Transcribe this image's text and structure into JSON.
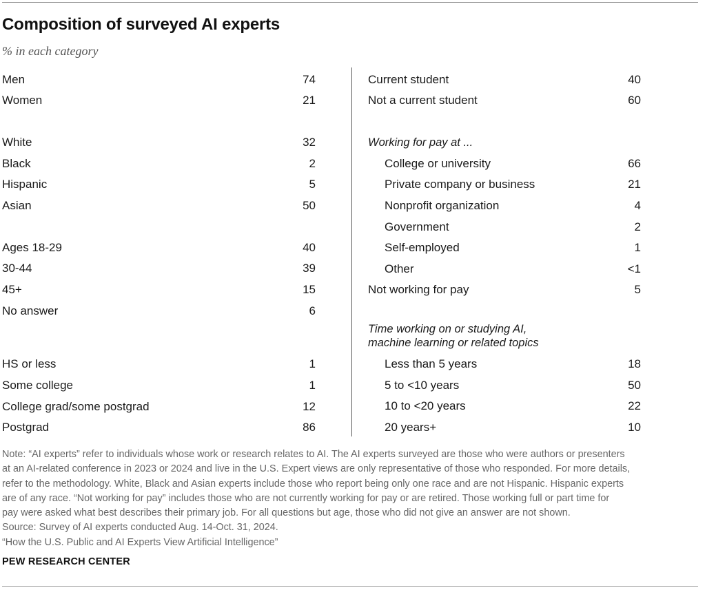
{
  "title": "Composition of surveyed AI experts",
  "subtitle": "% in each category",
  "chart_data": {
    "type": "table",
    "title": "Composition of surveyed AI experts",
    "subtitle": "% in each category",
    "left_column": [
      {
        "label": "Men",
        "value": "74"
      },
      {
        "label": "Women",
        "value": "21"
      },
      {
        "label": "White",
        "value": "32"
      },
      {
        "label": "Black",
        "value": "2"
      },
      {
        "label": "Hispanic",
        "value": "5"
      },
      {
        "label": "Asian",
        "value": "50"
      },
      {
        "label": "Ages 18-29",
        "value": "40"
      },
      {
        "label": "30-44",
        "value": "39"
      },
      {
        "label": "45+",
        "value": "15"
      },
      {
        "label": "No answer",
        "value": "6"
      },
      {
        "label": "HS or less",
        "value": "1"
      },
      {
        "label": "Some college",
        "value": "1"
      },
      {
        "label": "College grad/some postgrad",
        "value": "12"
      },
      {
        "label": "Postgrad",
        "value": "86"
      }
    ],
    "right_column": [
      {
        "label": "Current student",
        "value": "40"
      },
      {
        "label": "Not a current student",
        "value": "60"
      },
      {
        "label": "Working for pay at ...",
        "value": ""
      },
      {
        "label": "College or university",
        "value": "66"
      },
      {
        "label": "Private company or business",
        "value": "21"
      },
      {
        "label": "Nonprofit organization",
        "value": "4"
      },
      {
        "label": "Government",
        "value": "2"
      },
      {
        "label": "Self-employed",
        "value": "1"
      },
      {
        "label": "Other",
        "value": "<1"
      },
      {
        "label": "Not working for pay",
        "value": "5"
      },
      {
        "label": "Time working on or studying AI,",
        "value": ""
      },
      {
        "label": "machine learning or related topics",
        "value": ""
      },
      {
        "label": "Less than 5 years",
        "value": "18"
      },
      {
        "label": "5 to <10 years",
        "value": "50"
      },
      {
        "label": "10 to <20 years",
        "value": "22"
      },
      {
        "label": "20 years+",
        "value": "10"
      }
    ]
  },
  "notes": [
    "Note: “AI experts” refer to individuals whose work or research relates to AI. The AI experts surveyed are those who were authors or presenters",
    "at an AI-related conference in 2023 or 2024 and live in the U.S. Expert views are only representative of those who responded. For more details,",
    "refer to the methodology. White, Black and Asian experts include those who report being only one race and are not Hispanic. Hispanic experts",
    "are of any race. “Not working for pay” includes those who are not currently working for pay or are retired. Those working full or part time for",
    "pay were asked what best describes their primary job. For all questions but age, those who did not give an answer are not shown.",
    "Source: Survey of AI experts conducted Aug. 14-Oct. 31, 2024.",
    "“How the U.S. Public and AI Experts View Artificial Intelligence”"
  ],
  "brand": "PEW RESEARCH CENTER"
}
